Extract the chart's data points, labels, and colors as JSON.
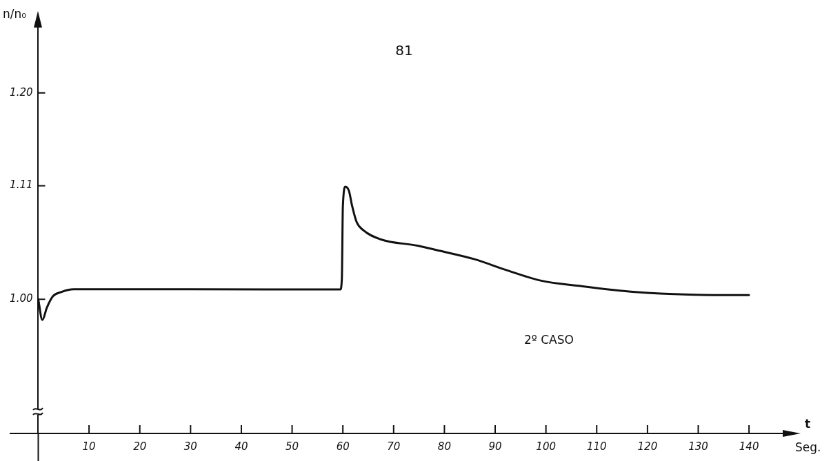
{
  "chart_data": {
    "type": "line",
    "title": "81",
    "xlabel": "t",
    "ylabel": "n/n₀",
    "annotations": [
      "2º CASO",
      "Seg."
    ],
    "series": [
      {
        "color": "#111111",
        "x": [
          0,
          0.8,
          1.7,
          2.9,
          4.5,
          7,
          15,
          30,
          45,
          59.5,
          59.8,
          60,
          60.5,
          61.2,
          61.8,
          62.7,
          64,
          67.5,
          74.7,
          79.1,
          85.8,
          92.4,
          99.1,
          106.5,
          117.6,
          128.1,
          140
        ],
        "values": [
          1.0,
          0.98,
          0.992,
          1.003,
          1.007,
          1.0097,
          1.0098,
          1.0097,
          1.0096,
          1.0096,
          1.02,
          1.09,
          1.109,
          1.105,
          1.091,
          1.075,
          1.067,
          1.058,
          1.052,
          1.047,
          1.039,
          1.028,
          1.018,
          1.013,
          1.007,
          1.0045,
          1.004
        ]
      }
    ],
    "xlim": [
      -5.5,
      148
    ],
    "ylim": [
      0.87,
      1.27
    ],
    "xticks": [
      10,
      20,
      30,
      40,
      50,
      60,
      70,
      80,
      90,
      100,
      110,
      120,
      130,
      140
    ],
    "yticks": [
      {
        "value": 1,
        "label": "1.00"
      },
      1.11,
      {
        "value": 1.2,
        "label": "1.20"
      }
    ],
    "grid": false,
    "legend": false,
    "marker": "none",
    "line_style": "solid"
  }
}
